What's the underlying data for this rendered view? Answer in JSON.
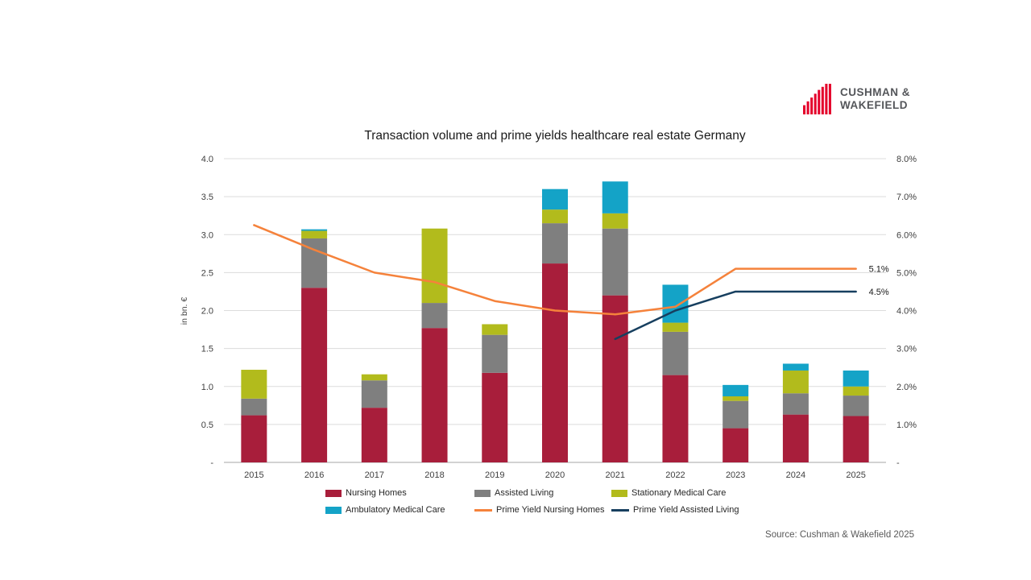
{
  "logo": {
    "line1": "CUSHMAN &",
    "line2": "WAKEFIELD",
    "brand_color": "#E4002B"
  },
  "source": "Source: Cushman & Wakefield 2025",
  "chart_data": {
    "type": "combo-stacked-bar-line",
    "title": "Transaction volume and prime yields healthcare real estate Germany",
    "ylabel_left": "in bn. €",
    "categories": [
      "2015",
      "2016",
      "2017",
      "2018",
      "2019",
      "2020",
      "2021",
      "2022",
      "2023",
      "2024",
      "2025"
    ],
    "bar_series": [
      {
        "name": "Nursing Homes",
        "color": "#A81E3B",
        "values": [
          0.62,
          2.3,
          0.72,
          1.77,
          1.18,
          2.62,
          2.2,
          1.15,
          0.45,
          0.63,
          0.61
        ]
      },
      {
        "name": "Assisted Living",
        "color": "#7F7F7F",
        "values": [
          0.22,
          0.65,
          0.36,
          0.33,
          0.5,
          0.53,
          0.88,
          0.57,
          0.36,
          0.28,
          0.27
        ]
      },
      {
        "name": "Stationary Medical Care",
        "color": "#B2BB1C",
        "values": [
          0.38,
          0.1,
          0.08,
          0.98,
          0.14,
          0.18,
          0.2,
          0.12,
          0.06,
          0.3,
          0.12
        ]
      },
      {
        "name": "Ambulatory Medical Care",
        "color": "#14A3C7",
        "values": [
          0.0,
          0.02,
          0.0,
          0.0,
          0.0,
          0.27,
          0.42,
          0.5,
          0.15,
          0.09,
          0.21
        ]
      }
    ],
    "line_series": [
      {
        "name": "Prime Yield Nursing Homes",
        "color": "#F5823B",
        "axis": "right",
        "values": [
          6.25,
          5.6,
          5.0,
          4.75,
          4.25,
          4.0,
          3.9,
          4.1,
          5.1,
          5.1,
          5.1
        ]
      },
      {
        "name": "Prime Yield Assisted Living",
        "color": "#173F5F",
        "axis": "right",
        "values": [
          null,
          null,
          null,
          null,
          null,
          null,
          3.25,
          4.0,
          4.5,
          4.5,
          4.5
        ]
      }
    ],
    "left_axis": {
      "min": 0,
      "max": 4.0,
      "ticks": [
        "4.0",
        "3.5",
        "3.0",
        "2.5",
        "2.0",
        "1.5",
        "1.0",
        "0.5",
        "-"
      ]
    },
    "right_axis": {
      "min": 0,
      "max": 8.0,
      "ticks": [
        "8.0%",
        "7.0%",
        "6.0%",
        "5.0%",
        "4.0%",
        "3.0%",
        "2.0%",
        "1.0%",
        "-"
      ]
    },
    "annotations": [
      {
        "text": "5.1%",
        "value": 5.1,
        "series": "Prime Yield Nursing Homes"
      },
      {
        "text": "4.5%",
        "value": 4.5,
        "series": "Prime Yield Assisted Living"
      }
    ],
    "legend": [
      {
        "label": "Nursing Homes",
        "color": "#A81E3B",
        "swatch": "square"
      },
      {
        "label": "Assisted Living",
        "color": "#7F7F7F",
        "swatch": "square"
      },
      {
        "label": "Stationary Medical Care",
        "color": "#B2BB1C",
        "swatch": "square"
      },
      {
        "label": "Ambulatory Medical Care",
        "color": "#14A3C7",
        "swatch": "square"
      },
      {
        "label": "Prime Yield Nursing Homes",
        "color": "#F5823B",
        "swatch": "line"
      },
      {
        "label": "Prime Yield Assisted Living",
        "color": "#173F5F",
        "swatch": "line"
      }
    ],
    "grid": "horizontal-light",
    "legend_position": "bottom"
  }
}
